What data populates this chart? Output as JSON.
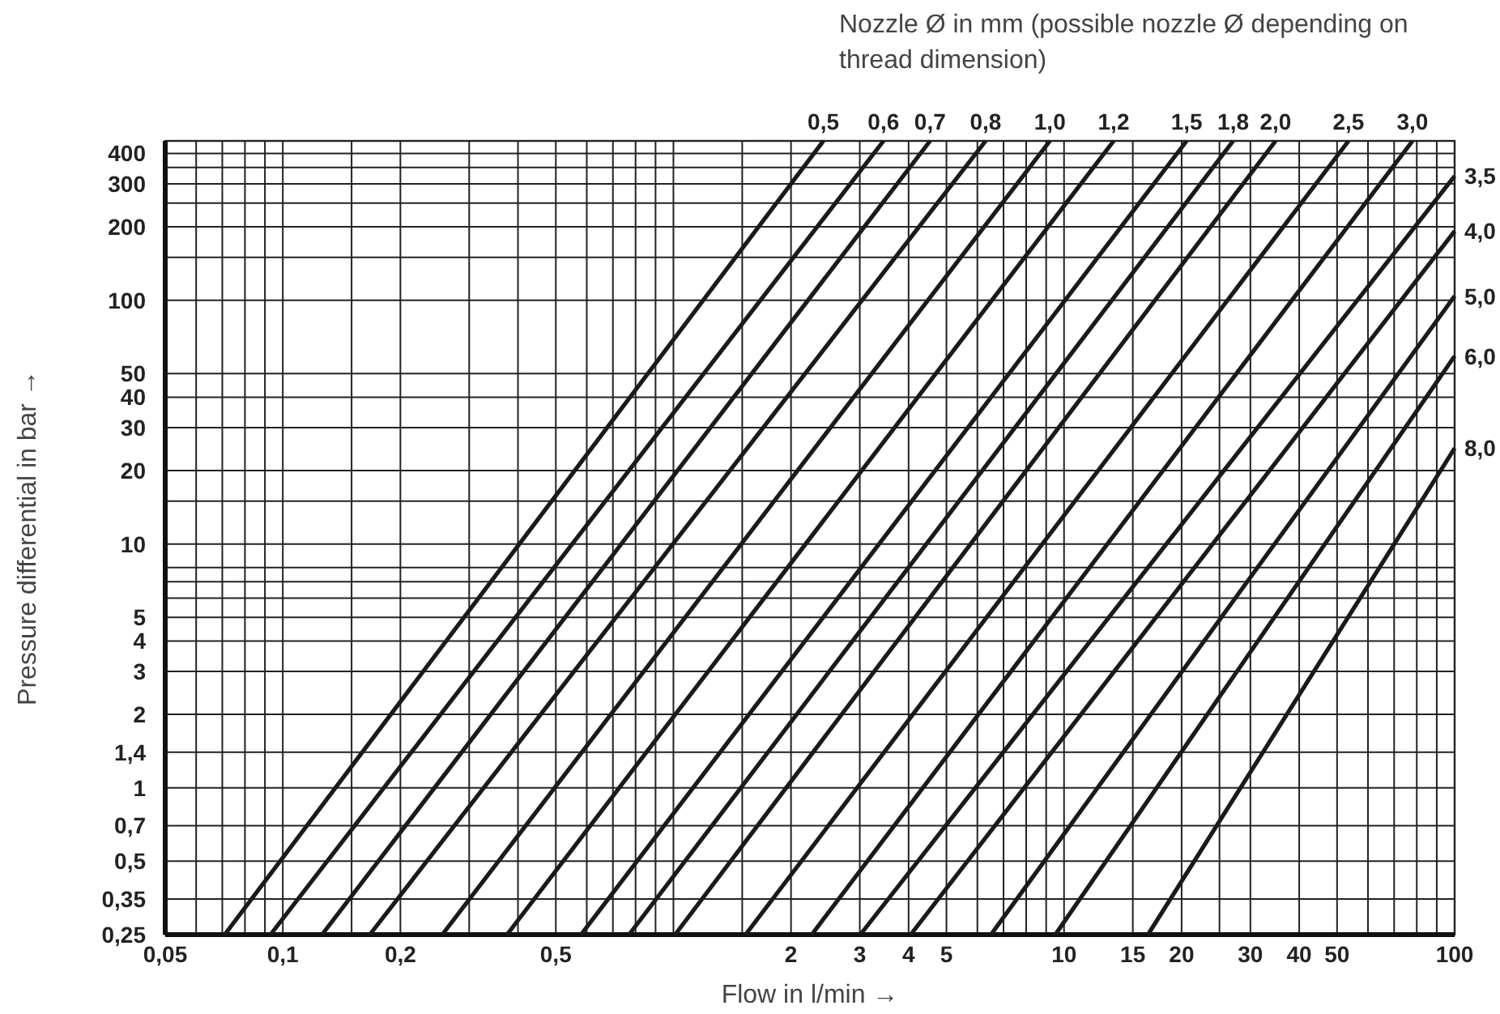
{
  "chart_data": {
    "type": "line",
    "xlabel": "Flow in l/min →",
    "ylabel": "Pressure differential in bar →",
    "annotations": [
      "Nozzle Ø in mm (possible nozzle Ø depending on thread dimension)"
    ],
    "log": "xy",
    "grid": true,
    "xlim": [
      0.05,
      100
    ],
    "ylim": [
      0.25,
      450
    ],
    "xticks": [
      {
        "value": 0.05,
        "label": "0,05"
      },
      {
        "value": 0.06,
        "label": null
      },
      {
        "value": 0.07,
        "label": null
      },
      {
        "value": 0.08,
        "label": null
      },
      {
        "value": 0.09,
        "label": null
      },
      {
        "value": 0.1,
        "label": "0,1"
      },
      {
        "value": 0.15,
        "label": null
      },
      {
        "value": 0.2,
        "label": "0,2"
      },
      {
        "value": 0.3,
        "label": null
      },
      {
        "value": 0.4,
        "label": null
      },
      {
        "value": 0.5,
        "label": "0,5"
      },
      {
        "value": 0.6,
        "label": null
      },
      {
        "value": 0.7,
        "label": null
      },
      {
        "value": 0.8,
        "label": null
      },
      {
        "value": 0.9,
        "label": null
      },
      {
        "value": 1,
        "label": null
      },
      {
        "value": 1.5,
        "label": null
      },
      2,
      3,
      4,
      5,
      {
        "value": 6,
        "label": null
      },
      {
        "value": 7,
        "label": null
      },
      {
        "value": 8,
        "label": null
      },
      {
        "value": 9,
        "label": null
      },
      10,
      15,
      20,
      {
        "value": 25,
        "label": null
      },
      30,
      40,
      50,
      {
        "value": 60,
        "label": null
      },
      {
        "value": 70,
        "label": null
      },
      {
        "value": 80,
        "label": null
      },
      {
        "value": 90,
        "label": null
      },
      100
    ],
    "yticks": [
      {
        "value": 0.25,
        "label": "0,25"
      },
      {
        "value": 0.35,
        "label": "0,35"
      },
      {
        "value": 0.5,
        "label": "0,5"
      },
      {
        "value": 0.7,
        "label": "0,7"
      },
      1,
      {
        "value": 1.4,
        "label": "1,4"
      },
      2,
      3,
      4,
      5,
      {
        "value": 6,
        "label": null
      },
      {
        "value": 7,
        "label": null
      },
      {
        "value": 8,
        "label": null
      },
      10,
      {
        "value": 15,
        "label": null
      },
      20,
      30,
      40,
      50,
      100,
      {
        "value": 150,
        "label": null
      },
      200,
      {
        "value": 250,
        "label": null
      },
      300,
      {
        "value": 350,
        "label": null
      },
      400
    ],
    "series": [
      {
        "name": "0,5",
        "color": "#1a1a1a",
        "x": [
          0.071,
          2.42
        ],
        "values": [
          0.25,
          450
        ]
      },
      {
        "name": "0,6",
        "color": "#1a1a1a",
        "x": [
          0.093,
          3.45
        ],
        "values": [
          0.25,
          450
        ]
      },
      {
        "name": "0,7",
        "color": "#1a1a1a",
        "x": [
          0.126,
          4.54
        ],
        "values": [
          0.25,
          450
        ]
      },
      {
        "name": "0,8",
        "color": "#1a1a1a",
        "x": [
          0.167,
          6.3
        ],
        "values": [
          0.25,
          450
        ]
      },
      {
        "name": "1,0",
        "color": "#1a1a1a",
        "x": [
          0.256,
          9.2
        ],
        "values": [
          0.25,
          450
        ]
      },
      {
        "name": "1,2",
        "color": "#1a1a1a",
        "x": [
          0.375,
          13.4
        ],
        "values": [
          0.25,
          450
        ]
      },
      {
        "name": "1,5",
        "color": "#1a1a1a",
        "x": [
          0.58,
          20.6
        ],
        "values": [
          0.25,
          450
        ]
      },
      {
        "name": "1,8",
        "color": "#1a1a1a",
        "x": [
          0.77,
          27.1
        ],
        "values": [
          0.25,
          450
        ]
      },
      {
        "name": "2,0",
        "color": "#1a1a1a",
        "x": [
          1.01,
          34.8
        ],
        "values": [
          0.25,
          450
        ]
      },
      {
        "name": "2,5",
        "color": "#1a1a1a",
        "x": [
          1.53,
          53.5
        ],
        "values": [
          0.25,
          450
        ]
      },
      {
        "name": "3,0",
        "color": "#1a1a1a",
        "x": [
          2.26,
          78
        ],
        "values": [
          0.25,
          450
        ]
      },
      {
        "name": "3,5",
        "color": "#1a1a1a",
        "x": [
          3.01,
          100
        ],
        "values": [
          0.25,
          323
        ]
      },
      {
        "name": "4,0",
        "color": "#1a1a1a",
        "x": [
          4.05,
          100
        ],
        "values": [
          0.25,
          192
        ]
      },
      {
        "name": "5,0",
        "color": "#1a1a1a",
        "x": [
          6.5,
          100
        ],
        "values": [
          0.25,
          104
        ]
      },
      {
        "name": "6,0",
        "color": "#1a1a1a",
        "x": [
          9.5,
          100
        ],
        "values": [
          0.25,
          59
        ]
      },
      {
        "name": "8,0",
        "color": "#1a1a1a",
        "x": [
          16.4,
          100
        ],
        "values": [
          0.25,
          24.7
        ]
      }
    ]
  }
}
